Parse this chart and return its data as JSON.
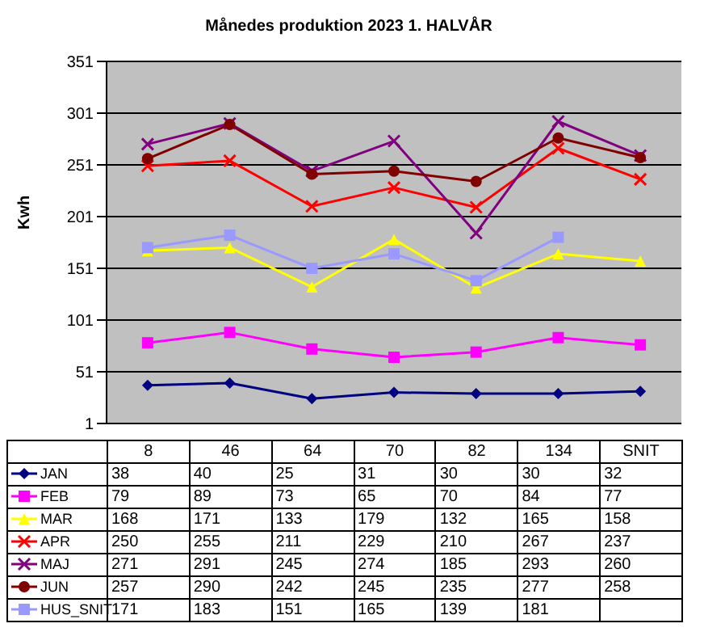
{
  "chart_data": {
    "type": "line",
    "title": "Månedes produktion  2023 1. HALVÅR",
    "ylabel": "Kwh",
    "categories": [
      "8",
      "46",
      "64",
      "70",
      "82",
      "134",
      "SNIT"
    ],
    "ylim": [
      1,
      351
    ],
    "yticks": [
      1,
      51,
      101,
      151,
      201,
      251,
      301,
      351
    ],
    "grid": "y",
    "legend": "bottom",
    "data_labels": true,
    "series": [
      {
        "name": "JAN",
        "color": "#000080",
        "marker": "diamond",
        "values": [
          38,
          40,
          25,
          31,
          30,
          30,
          32
        ]
      },
      {
        "name": "FEB",
        "color": "#ff00ff",
        "marker": "square",
        "values": [
          79,
          89,
          73,
          65,
          70,
          84,
          77
        ]
      },
      {
        "name": "MAR",
        "color": "#ffff00",
        "marker": "triangle",
        "values": [
          168,
          171,
          133,
          179,
          132,
          165,
          158
        ]
      },
      {
        "name": "APR",
        "color": "#ff0000",
        "marker": "cross",
        "values": [
          250,
          255,
          211,
          229,
          210,
          267,
          237
        ]
      },
      {
        "name": "MAJ",
        "color": "#800080",
        "marker": "cross",
        "values": [
          271,
          291,
          245,
          274,
          185,
          293,
          260
        ]
      },
      {
        "name": "JUN",
        "color": "#800000",
        "marker": "circle",
        "values": [
          257,
          290,
          242,
          245,
          235,
          277,
          258
        ]
      },
      {
        "name": "HUS_SNIT",
        "color": "#9999ff",
        "marker": "square",
        "values": [
          171,
          183,
          151,
          165,
          139,
          181,
          null
        ]
      }
    ]
  }
}
